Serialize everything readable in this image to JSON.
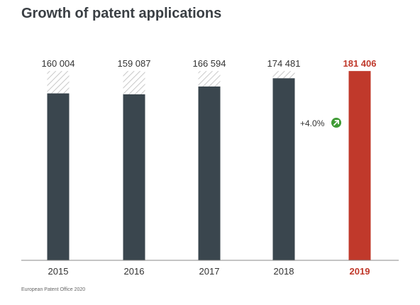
{
  "title": "Growth of patent applications",
  "source": "European Patent Office 2020",
  "colors": {
    "bar": "#3a464e",
    "highlight": "#c0392b",
    "hatch": "#c8c8c8",
    "arrow_badge": "#3f9b35",
    "text": "#333333",
    "axis": "#888888"
  },
  "chart_data": {
    "type": "bar",
    "title": "Growth of patent applications",
    "categories": [
      "2015",
      "2016",
      "2017",
      "2018",
      "2019"
    ],
    "values": [
      160004,
      159087,
      166594,
      174481,
      181406
    ],
    "value_labels": [
      "160 004",
      "159 087",
      "166 594",
      "174 481",
      "181 406"
    ],
    "highlight_category": "2019",
    "annotation": "+4.0%",
    "hatched_top_value": 181406,
    "xlabel": "",
    "ylabel": "",
    "ylim": [
      0,
      185000
    ],
    "grid": false,
    "legend": "none"
  }
}
